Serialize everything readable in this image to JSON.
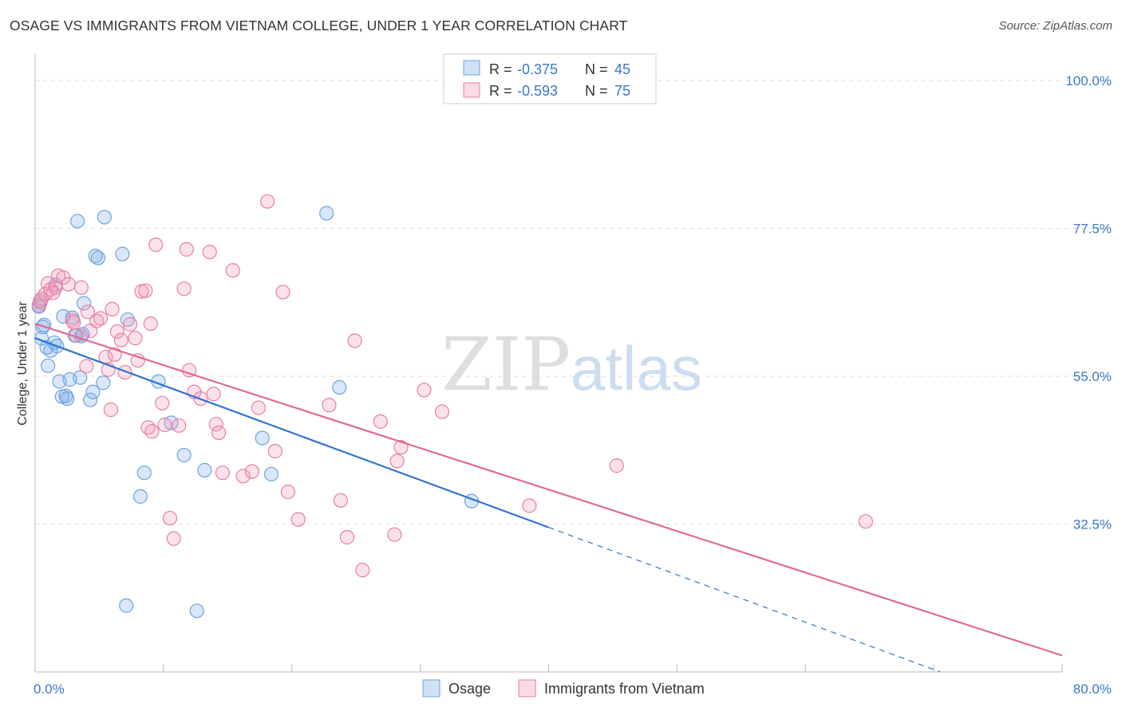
{
  "header": {
    "title": "OSAGE VS IMMIGRANTS FROM VIETNAM COLLEGE, UNDER 1 YEAR CORRELATION CHART",
    "source": "Source: ZipAtlas.com"
  },
  "watermark": {
    "zip": "ZIP",
    "atlas": "atlas"
  },
  "legend_box": {
    "rows": [
      {
        "r_label": "R = ",
        "r_value": "-0.375",
        "n_label": "N = ",
        "n_value": "45"
      },
      {
        "r_label": "R = ",
        "r_value": "-0.593",
        "n_label": "N = ",
        "n_value": "75"
      }
    ]
  },
  "bottom_legend": {
    "items": [
      "Osage",
      "Immigrants from Vietnam"
    ]
  },
  "colors": {
    "osage": "#6fa4e0",
    "osage_fill": "rgba(120,170,230,0.28)",
    "osage_line": "#2f74d0",
    "vietnam": "#e87fa3",
    "vietnam_fill": "rgba(240,150,180,0.28)",
    "vietnam_line": "#e06a93",
    "axis_text": "#3a78c8",
    "grid": "#dddddd"
  },
  "chart_data": {
    "type": "scatter",
    "xlabel": "",
    "ylabel": "College, Under 1 year",
    "xlim": [
      0,
      80
    ],
    "ylim": [
      10,
      104
    ],
    "x_tick_labels": [
      "0.0%",
      "80.0%"
    ],
    "y_ticks": [
      32.5,
      55.0,
      77.5,
      100.0
    ],
    "y_tick_labels": [
      "32.5%",
      "55.0%",
      "77.5%",
      "100.0%"
    ],
    "grid": true,
    "series": [
      {
        "name": "Osage",
        "r": -0.375,
        "n": 45,
        "trend": {
          "x0": 0,
          "y0": 60.8,
          "x1": 40,
          "y1": 32.0,
          "dash_to_x": 70.5,
          "dash_to_y": 10.0
        },
        "points": [
          [
            0.4,
            66.2
          ],
          [
            0.7,
            62.8
          ],
          [
            0.5,
            60.8
          ],
          [
            1.0,
            56.6
          ],
          [
            0.9,
            59.4
          ],
          [
            1.5,
            60.1
          ],
          [
            1.7,
            59.6
          ],
          [
            1.9,
            54.2
          ],
          [
            2.1,
            51.9
          ],
          [
            2.2,
            64.1
          ],
          [
            2.5,
            51.6
          ],
          [
            2.7,
            54.5
          ],
          [
            3.1,
            61.2
          ],
          [
            3.3,
            78.6
          ],
          [
            3.5,
            54.8
          ],
          [
            3.6,
            61.1
          ],
          [
            3.8,
            66.1
          ],
          [
            4.3,
            51.4
          ],
          [
            4.5,
            52.6
          ],
          [
            4.7,
            73.3
          ],
          [
            4.9,
            73.0
          ],
          [
            5.3,
            54.0
          ],
          [
            5.4,
            79.2
          ],
          [
            6.8,
            73.6
          ],
          [
            7.2,
            63.6
          ],
          [
            8.2,
            36.7
          ],
          [
            8.5,
            40.3
          ],
          [
            9.6,
            54.2
          ],
          [
            10.6,
            47.9
          ],
          [
            11.6,
            43.0
          ],
          [
            12.6,
            19.3
          ],
          [
            13.2,
            40.7
          ],
          [
            17.7,
            45.6
          ],
          [
            18.4,
            40.1
          ],
          [
            22.7,
            79.8
          ],
          [
            23.7,
            53.3
          ],
          [
            34.0,
            36.0
          ],
          [
            7.1,
            20.1
          ],
          [
            1.2,
            58.9
          ],
          [
            2.4,
            52.0
          ],
          [
            0.3,
            65.6
          ],
          [
            1.6,
            68.9
          ],
          [
            3.7,
            61.4
          ],
          [
            0.6,
            62.5
          ],
          [
            2.9,
            63.9
          ]
        ]
      },
      {
        "name": "Immigrants from Vietnam",
        "r": -0.593,
        "n": 75,
        "trend": {
          "x0": 0,
          "y0": 63.0,
          "x1": 80,
          "y1": 12.5
        },
        "points": [
          [
            0.3,
            65.8
          ],
          [
            0.5,
            66.8
          ],
          [
            0.8,
            67.5
          ],
          [
            1.0,
            69.1
          ],
          [
            1.2,
            68.2
          ],
          [
            1.6,
            68.5
          ],
          [
            1.8,
            70.3
          ],
          [
            2.2,
            70.0
          ],
          [
            2.6,
            69.0
          ],
          [
            2.9,
            63.5
          ],
          [
            3.2,
            61.2
          ],
          [
            3.6,
            68.5
          ],
          [
            4.1,
            64.8
          ],
          [
            4.3,
            61.9
          ],
          [
            4.8,
            63.4
          ],
          [
            5.1,
            63.8
          ],
          [
            5.5,
            57.9
          ],
          [
            5.9,
            49.9
          ],
          [
            6.0,
            65.2
          ],
          [
            6.4,
            61.8
          ],
          [
            6.7,
            60.5
          ],
          [
            7.0,
            55.6
          ],
          [
            7.4,
            62.9
          ],
          [
            7.8,
            60.8
          ],
          [
            8.0,
            57.4
          ],
          [
            8.3,
            67.9
          ],
          [
            8.6,
            68.0
          ],
          [
            8.8,
            47.2
          ],
          [
            9.1,
            46.6
          ],
          [
            9.4,
            75.0
          ],
          [
            9.9,
            50.9
          ],
          [
            10.1,
            47.6
          ],
          [
            10.5,
            33.4
          ],
          [
            10.8,
            30.3
          ],
          [
            11.2,
            47.5
          ],
          [
            11.6,
            68.3
          ],
          [
            11.8,
            74.3
          ],
          [
            12.0,
            55.9
          ],
          [
            12.4,
            52.6
          ],
          [
            12.9,
            51.6
          ],
          [
            13.6,
            73.9
          ],
          [
            13.9,
            52.3
          ],
          [
            14.1,
            47.7
          ],
          [
            14.3,
            46.4
          ],
          [
            14.6,
            40.3
          ],
          [
            15.4,
            71.1
          ],
          [
            16.2,
            39.8
          ],
          [
            16.9,
            40.5
          ],
          [
            17.4,
            50.2
          ],
          [
            18.1,
            81.6
          ],
          [
            18.7,
            43.6
          ],
          [
            19.3,
            67.8
          ],
          [
            19.7,
            37.4
          ],
          [
            20.5,
            33.2
          ],
          [
            22.9,
            50.6
          ],
          [
            23.8,
            36.1
          ],
          [
            24.3,
            30.5
          ],
          [
            24.9,
            60.4
          ],
          [
            25.5,
            25.5
          ],
          [
            26.9,
            48.1
          ],
          [
            28.0,
            30.9
          ],
          [
            28.2,
            42.1
          ],
          [
            28.5,
            44.2
          ],
          [
            30.3,
            52.9
          ],
          [
            31.7,
            49.6
          ],
          [
            38.5,
            35.3
          ],
          [
            45.3,
            41.4
          ],
          [
            64.7,
            32.9
          ],
          [
            4.0,
            56.5
          ],
          [
            6.2,
            58.3
          ],
          [
            9.0,
            63.0
          ],
          [
            1.4,
            67.7
          ],
          [
            0.4,
            66.5
          ],
          [
            3.0,
            63.2
          ],
          [
            5.7,
            56.0
          ]
        ]
      }
    ]
  }
}
